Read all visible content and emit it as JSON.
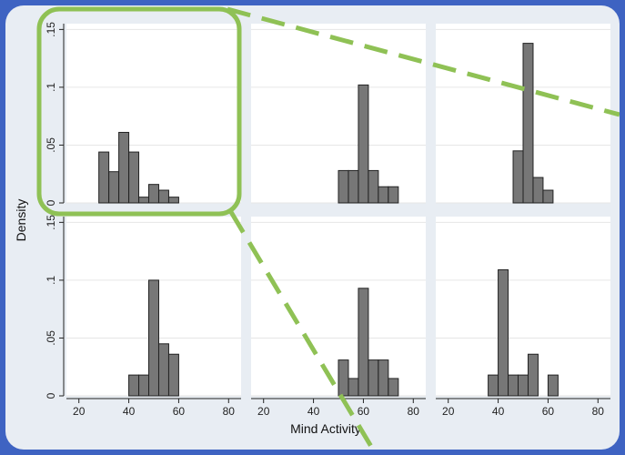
{
  "colors": {
    "frame": "#3e63c2",
    "background": "#e8edf3",
    "panel": "#ffffff",
    "grid": "#e6e6e6",
    "bar_fill": "#777777",
    "bar_stroke": "#222222",
    "highlight": "#8fc155"
  },
  "chart_data": {
    "type": "bar",
    "layout": "2x3 small-multiple histograms",
    "xlabel": "Mind Activity",
    "ylabel": "Density",
    "xlim": [
      15,
      85
    ],
    "ylim": [
      0,
      0.155
    ],
    "xticks": [
      20,
      40,
      60,
      80
    ],
    "xtick_labels": [
      "20",
      "40",
      "60",
      "80"
    ],
    "yticks": [
      0,
      0.05,
      0.1,
      0.15
    ],
    "ytick_labels": [
      "0",
      ".05",
      ".1",
      ".15"
    ],
    "bin_width": 4,
    "grid": true,
    "panels": [
      {
        "bins": [
          {
            "x0": 28,
            "value": 0.044
          },
          {
            "x0": 32,
            "value": 0.027
          },
          {
            "x0": 36,
            "value": 0.061
          },
          {
            "x0": 40,
            "value": 0.044
          },
          {
            "x0": 44,
            "value": 0.005
          },
          {
            "x0": 48,
            "value": 0.016
          },
          {
            "x0": 52,
            "value": 0.011
          },
          {
            "x0": 56,
            "value": 0.005
          }
        ]
      },
      {
        "bins": [
          {
            "x0": 50,
            "value": 0.028
          },
          {
            "x0": 54,
            "value": 0.028
          },
          {
            "x0": 58,
            "value": 0.102
          },
          {
            "x0": 62,
            "value": 0.028
          },
          {
            "x0": 66,
            "value": 0.014
          },
          {
            "x0": 70,
            "value": 0.014
          }
        ]
      },
      {
        "bins": [
          {
            "x0": 46,
            "value": 0.045
          },
          {
            "x0": 50,
            "value": 0.138
          },
          {
            "x0": 54,
            "value": 0.022
          },
          {
            "x0": 58,
            "value": 0.011
          }
        ]
      },
      {
        "bins": [
          {
            "x0": 40,
            "value": 0.018
          },
          {
            "x0": 44,
            "value": 0.018
          },
          {
            "x0": 48,
            "value": 0.1
          },
          {
            "x0": 52,
            "value": 0.045
          },
          {
            "x0": 56,
            "value": 0.036
          }
        ]
      },
      {
        "bins": [
          {
            "x0": 50,
            "value": 0.031
          },
          {
            "x0": 54,
            "value": 0.015
          },
          {
            "x0": 58,
            "value": 0.093
          },
          {
            "x0": 62,
            "value": 0.031
          },
          {
            "x0": 66,
            "value": 0.031
          },
          {
            "x0": 70,
            "value": 0.015
          }
        ]
      },
      {
        "bins": [
          {
            "x0": 36,
            "value": 0.018
          },
          {
            "x0": 40,
            "value": 0.109
          },
          {
            "x0": 44,
            "value": 0.018
          },
          {
            "x0": 48,
            "value": 0.018
          },
          {
            "x0": 52,
            "value": 0.036
          },
          {
            "x0": 60,
            "value": 0.018
          }
        ]
      }
    ]
  }
}
